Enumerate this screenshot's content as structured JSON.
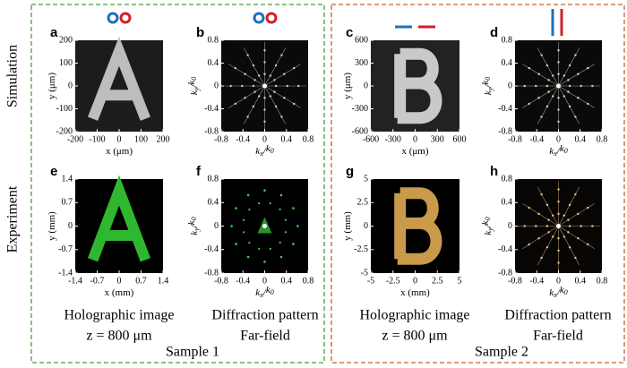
{
  "row_labels": [
    "Simulation",
    "Experiment"
  ],
  "panels": [
    {
      "label": "a",
      "xticks": [
        -200,
        -100,
        0,
        100,
        200
      ],
      "yticks": [
        200,
        100,
        0,
        -100,
        -200
      ],
      "x_label": [
        "x (μm)"
      ],
      "y_label": [
        "y (μm)"
      ]
    },
    {
      "label": "b",
      "xticks": [
        -0.8,
        -0.4,
        0,
        0.4,
        0.8
      ],
      "yticks": [
        0.8,
        0.4,
        0,
        -0.4,
        -0.8
      ],
      "x_label": [
        "k",
        "x",
        "/",
        "k",
        "0"
      ],
      "y_label": [
        "k",
        "y",
        "/",
        "k",
        "0"
      ]
    },
    {
      "label": "c",
      "xticks": [
        -600,
        -300,
        0,
        300,
        600
      ],
      "yticks": [
        600,
        300,
        0,
        -300,
        -600
      ],
      "x_label": [
        "x (μm)"
      ],
      "y_label": [
        "y (μm)"
      ]
    },
    {
      "label": "d",
      "xticks": [
        -0.8,
        -0.4,
        0,
        0.4,
        0.8
      ],
      "yticks": [
        0.8,
        0.4,
        0,
        -0.4,
        -0.8
      ],
      "x_label": [
        "k",
        "x",
        "/",
        "k",
        "0"
      ],
      "y_label": [
        "k",
        "y",
        "/",
        "k",
        "0"
      ]
    },
    {
      "label": "e",
      "xticks": [
        -1.4,
        -0.7,
        0,
        0.7,
        1.4
      ],
      "yticks": [
        1.4,
        0.7,
        0,
        -0.7,
        -1.4
      ],
      "x_label": [
        "x (mm)"
      ],
      "y_label": [
        "y (mm)"
      ]
    },
    {
      "label": "f",
      "xticks": [
        -0.8,
        -0.4,
        0,
        0.4,
        0.8
      ],
      "yticks": [
        0.8,
        0.4,
        0,
        -0.4,
        -0.8
      ],
      "x_label": [
        "k",
        "x",
        "/",
        "k",
        "0"
      ],
      "y_label": [
        "k",
        "y",
        "/",
        "k",
        "0"
      ]
    },
    {
      "label": "g",
      "xticks": [
        -5,
        -2.5,
        0,
        2.5,
        5
      ],
      "yticks": [
        5,
        2.5,
        0,
        -2.5,
        -5
      ],
      "x_label": [
        "x (mm)"
      ],
      "y_label": [
        "y (mm)"
      ]
    },
    {
      "label": "h",
      "xticks": [
        -0.8,
        -0.4,
        0,
        0.4,
        0.8
      ],
      "yticks": [
        0.8,
        0.4,
        0,
        -0.4,
        -0.8
      ],
      "x_label": [
        "k",
        "x",
        "/",
        "k",
        "0"
      ],
      "y_label": [
        "k",
        "y",
        "/",
        "k",
        "0"
      ]
    }
  ],
  "captions": [
    {
      "line1": "Holographic image",
      "line2": "z = 800 μm"
    },
    {
      "line1": "Diffraction pattern",
      "line2": "Far-field"
    },
    {
      "line1": "Holographic image",
      "line2": "z = 800 μm"
    },
    {
      "line1": "Diffraction pattern",
      "line2": "Far-field"
    }
  ],
  "samples": [
    "Sample 1",
    "Sample 2"
  ]
}
